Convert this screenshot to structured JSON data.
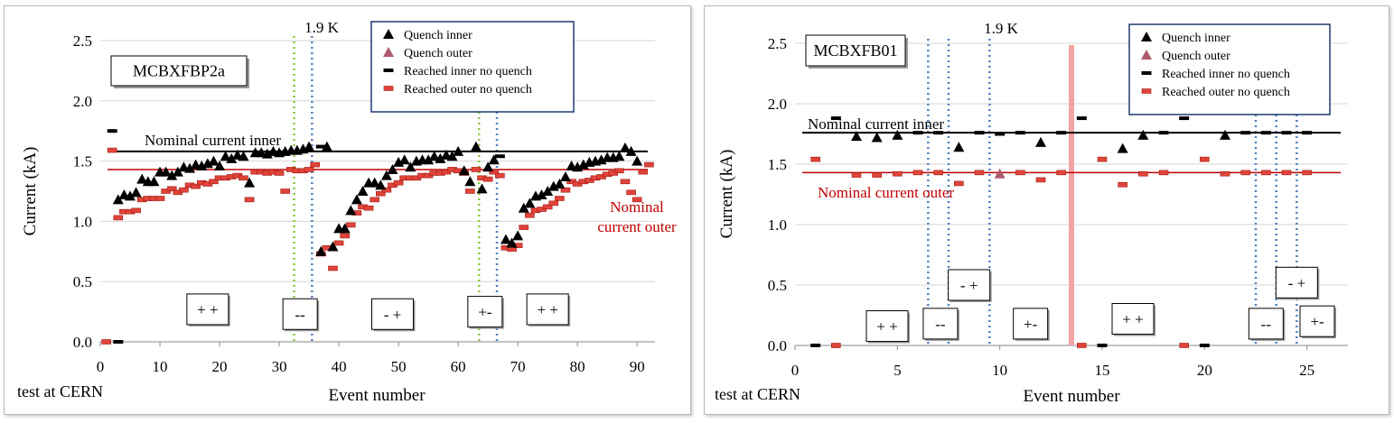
{
  "chart_data": [
    {
      "type": "scatter",
      "id": "left",
      "title": "MCBXFBP2a",
      "xlabel": "Event number",
      "ylabel": "Current (kA)",
      "xlim": [
        0,
        93
      ],
      "ylim": [
        0,
        2.5
      ],
      "xticks": [
        0,
        10,
        20,
        30,
        40,
        50,
        60,
        70,
        80,
        90
      ],
      "yticks": [
        "0.0",
        "0.5",
        "1.0",
        "1.5",
        "2.0",
        "2.5"
      ],
      "footnote": "test at CERN",
      "temperature_label": "1.9 K",
      "legend": {
        "quench_inner": "Quench inner",
        "quench_outer": "Quench outer",
        "reached_inner": "Reached inner no quench",
        "reached_outer": "Reached outer no quench"
      },
      "nominal_inner": {
        "label": "Nominal current inner",
        "value": 1.58
      },
      "nominal_outer": {
        "label": "Nominal current outer",
        "value": 1.43
      },
      "green_lines": [
        32.5,
        63.5
      ],
      "blue_lines": [
        35.5,
        66.5
      ],
      "polarity_labels": [
        {
          "text": "+ +",
          "x": 18,
          "y": 0.27
        },
        {
          "text": "--",
          "x": 33.5,
          "y": 0.23
        },
        {
          "text": "- +",
          "x": 49,
          "y": 0.23
        },
        {
          "text": "+-",
          "x": 64.5,
          "y": 0.25
        },
        {
          "text": "+ +",
          "x": 75,
          "y": 0.27
        }
      ],
      "series": {
        "quench_inner": {
          "x": [
            3,
            4,
            5,
            6,
            7,
            8,
            9,
            10,
            11,
            12,
            13,
            14,
            15,
            16,
            17,
            18,
            19,
            20,
            21,
            22,
            23,
            24,
            25,
            26,
            27,
            28,
            29,
            30,
            31,
            32,
            33,
            34,
            35,
            37,
            38,
            39,
            40,
            41,
            42,
            43,
            44,
            45,
            46,
            47,
            48,
            49,
            50,
            51,
            52,
            53,
            54,
            55,
            56,
            57,
            58,
            59,
            60,
            61,
            62,
            63,
            64,
            65,
            66,
            68,
            69,
            70,
            71,
            72,
            73,
            74,
            75,
            76,
            77,
            78,
            79,
            80,
            81,
            82,
            83,
            84,
            85,
            86,
            87,
            88,
            89,
            90
          ],
          "y": [
            1.18,
            1.22,
            1.21,
            1.24,
            1.35,
            1.33,
            1.33,
            1.41,
            1.41,
            1.38,
            1.41,
            1.45,
            1.44,
            1.47,
            1.46,
            1.48,
            1.5,
            1.46,
            1.54,
            1.52,
            1.55,
            1.54,
            1.32,
            1.57,
            1.57,
            1.56,
            1.58,
            1.57,
            1.58,
            1.59,
            1.59,
            1.6,
            1.62,
            0.75,
            1.62,
            0.79,
            0.94,
            0.94,
            1.09,
            1.18,
            1.25,
            1.32,
            1.32,
            1.3,
            1.38,
            1.43,
            1.49,
            1.51,
            1.45,
            1.5,
            1.51,
            1.51,
            1.54,
            1.52,
            1.55,
            1.54,
            1.58,
            1.42,
            1.33,
            1.62,
            1.27,
            1.45,
            1.51,
            0.85,
            0.82,
            0.88,
            1.11,
            1.15,
            1.21,
            1.22,
            1.25,
            1.29,
            1.31,
            1.37,
            1.46,
            1.45,
            1.47,
            1.49,
            1.5,
            1.51,
            1.53,
            1.53,
            1.54,
            1.61,
            1.58,
            1.5
          ]
        },
        "reached_inner": {
          "x": [
            2,
            3,
            37,
            67
          ],
          "y": [
            1.75,
            0.0,
            1.62,
            1.54
          ]
        },
        "reached_outer": {
          "x": [
            1,
            2,
            3,
            4,
            5,
            6,
            7,
            8,
            9,
            10,
            11,
            12,
            13,
            14,
            15,
            16,
            17,
            18,
            19,
            20,
            21,
            22,
            23,
            24,
            25,
            26,
            27,
            28,
            29,
            30,
            31,
            32,
            33,
            34,
            35,
            36,
            37,
            38,
            39,
            40,
            41,
            42,
            43,
            44,
            45,
            46,
            47,
            48,
            49,
            50,
            51,
            52,
            53,
            54,
            55,
            56,
            57,
            58,
            59,
            60,
            61,
            62,
            63,
            64,
            65,
            66,
            67,
            68,
            69,
            70,
            71,
            72,
            73,
            74,
            75,
            76,
            77,
            78,
            79,
            80,
            81,
            82,
            83,
            84,
            85,
            86,
            87,
            88,
            89,
            90,
            91,
            92
          ],
          "y": [
            0.0,
            1.59,
            1.03,
            1.08,
            1.08,
            1.09,
            1.18,
            1.19,
            1.19,
            1.19,
            1.25,
            1.27,
            1.24,
            1.26,
            1.3,
            1.29,
            1.32,
            1.31,
            1.33,
            1.36,
            1.36,
            1.37,
            1.38,
            1.36,
            1.18,
            1.41,
            1.41,
            1.4,
            1.41,
            1.4,
            1.25,
            1.43,
            1.42,
            1.42,
            1.43,
            1.47,
            0.73,
            0.78,
            0.61,
            0.82,
            0.88,
            0.97,
            1.07,
            1.12,
            1.11,
            1.18,
            1.23,
            1.26,
            1.3,
            1.32,
            1.36,
            1.36,
            1.36,
            1.38,
            1.38,
            1.4,
            1.4,
            1.41,
            1.43,
            1.42,
            1.4,
            1.25,
            1.43,
            1.36,
            1.35,
            1.41,
            1.38,
            0.78,
            0.77,
            0.8,
            0.95,
            1.05,
            1.09,
            1.1,
            1.12,
            1.15,
            1.19,
            1.26,
            1.33,
            1.31,
            1.33,
            1.34,
            1.36,
            1.37,
            1.39,
            1.4,
            1.42,
            1.33,
            1.24,
            1.18,
            1.41,
            1.47
          ]
        },
        "quench_outer": {
          "x": [],
          "y": []
        }
      }
    },
    {
      "type": "scatter",
      "id": "right",
      "title": "MCBXFB01",
      "xlabel": "Event number",
      "ylabel": "Current (kA)",
      "xlim": [
        0,
        27
      ],
      "ylim": [
        0,
        2.5
      ],
      "xticks": [
        0,
        5,
        10,
        15,
        20,
        25
      ],
      "yticks": [
        "0.0",
        "0.5",
        "1.0",
        "1.5",
        "2.0",
        "2.5"
      ],
      "footnote": "test at CERN",
      "temperature_label": "1.9 K",
      "legend": {
        "quench_inner": "Quench inner",
        "quench_outer": "Quench outer",
        "reached_inner": "Reached inner no quench",
        "reached_outer": "Reached outer no quench"
      },
      "nominal_inner": {
        "label": "Nominal current inner",
        "value": 1.76
      },
      "nominal_outer": {
        "label": "Nominal current outer",
        "value": 1.43
      },
      "blue_lines": [
        6.5,
        7.5,
        9.5,
        22.5,
        23.5,
        24.5
      ],
      "red_band": 13.5,
      "polarity_labels": [
        {
          "text": "+ +",
          "x": 4.5,
          "y": 0.16
        },
        {
          "text": "--",
          "x": 7.1,
          "y": 0.18
        },
        {
          "text": "- +",
          "x": 8.5,
          "y": 0.5
        },
        {
          "text": "+-",
          "x": 11.5,
          "y": 0.18
        },
        {
          "text": "+ +",
          "x": 16.5,
          "y": 0.22
        },
        {
          "text": "--",
          "x": 23,
          "y": 0.18
        },
        {
          "text": "- +",
          "x": 24.5,
          "y": 0.52
        },
        {
          "text": "+-",
          "x": 25.5,
          "y": 0.2
        }
      ],
      "series": {
        "quench_inner": {
          "x": [
            3,
            4,
            5,
            8,
            12,
            16,
            17,
            21
          ],
          "y": [
            1.73,
            1.72,
            1.74,
            1.64,
            1.68,
            1.63,
            1.74,
            1.74
          ]
        },
        "reached_inner": {
          "x": [
            1,
            2,
            6,
            7,
            9,
            10,
            11,
            13,
            14,
            15,
            18,
            19,
            20,
            22,
            23,
            24,
            25
          ],
          "y": [
            0.0,
            1.88,
            1.76,
            1.76,
            1.76,
            1.75,
            1.76,
            1.76,
            1.88,
            0.0,
            1.76,
            1.88,
            0.0,
            1.76,
            1.76,
            1.76,
            1.76
          ]
        },
        "reached_outer": {
          "x": [
            1,
            2,
            3,
            4,
            5,
            6,
            7,
            8,
            9,
            11,
            12,
            13,
            14,
            15,
            16,
            17,
            18,
            19,
            20,
            21,
            22,
            23,
            24,
            25
          ],
          "y": [
            1.54,
            0.0,
            1.41,
            1.41,
            1.42,
            1.43,
            1.43,
            1.34,
            1.43,
            1.43,
            1.37,
            1.43,
            0.0,
            1.54,
            1.33,
            1.42,
            1.43,
            0.0,
            1.54,
            1.42,
            1.43,
            1.43,
            1.43,
            1.43
          ]
        },
        "quench_outer": {
          "x": [
            10
          ],
          "y": [
            1.42
          ]
        }
      }
    }
  ]
}
